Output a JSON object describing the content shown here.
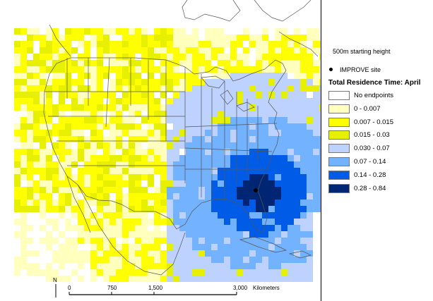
{
  "legend": {
    "starting_height": "500m starting height",
    "site_label": "IMPROVE site",
    "title": "Total Residence Time: April",
    "classes": [
      {
        "label": "No endpoints",
        "color": "#ffffff"
      },
      {
        "label": "0 - 0.007",
        "color": "#ffffbe"
      },
      {
        "label": "0.007 - 0.015",
        "color": "#ffff00"
      },
      {
        "label": "0.015 - 0.03",
        "color": "#e6f000"
      },
      {
        "label": "0.030 - 0.07",
        "color": "#bed2ff"
      },
      {
        "label": "0.07 - 0.14",
        "color": "#73b2ff"
      },
      {
        "label": "0.14 - 0.28",
        "color": "#005ce6"
      },
      {
        "label": "0.28 - 0.84",
        "color": "#002673"
      }
    ]
  },
  "scale_bar": {
    "north": "N",
    "ticks": [
      "0",
      "750",
      "1,500",
      "3,000"
    ],
    "unit": "Kilometers"
  },
  "colors": {
    "lines": "#555555",
    "border": "#000000"
  }
}
